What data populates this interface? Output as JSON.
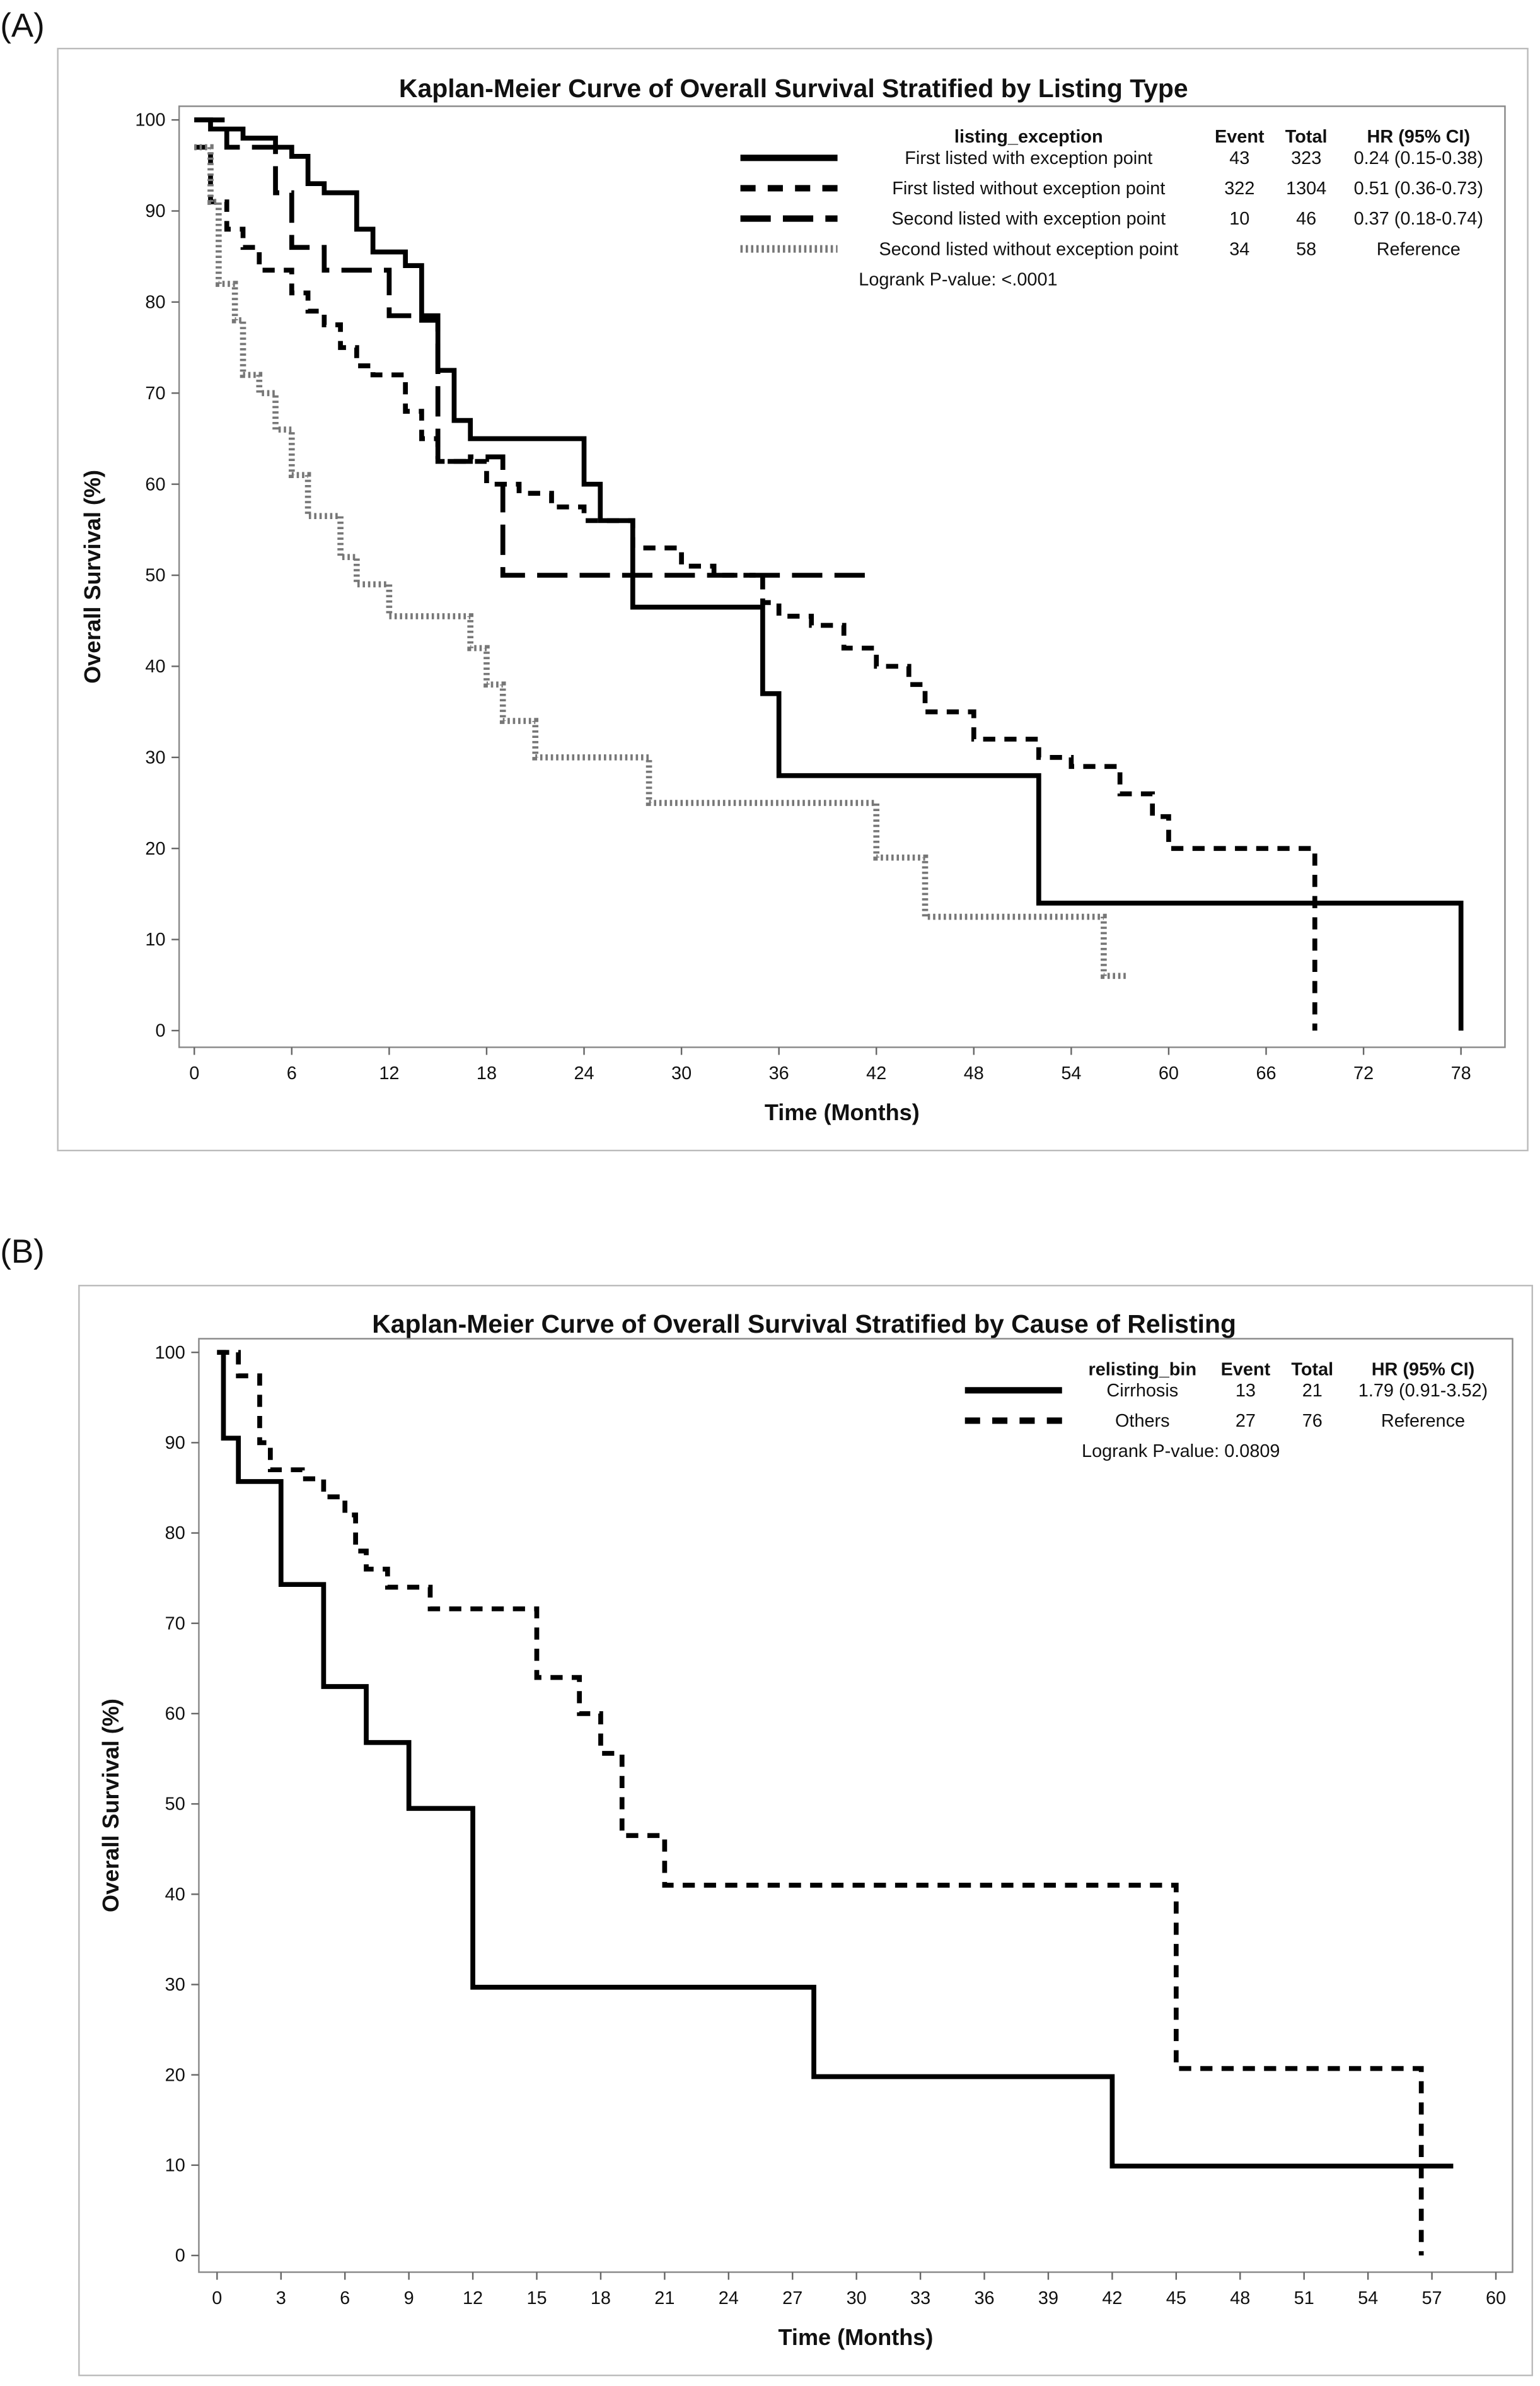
{
  "panels": [
    {
      "label": "(A)"
    },
    {
      "label": "(B)"
    }
  ],
  "chart_data": [
    {
      "type": "line",
      "subtype": "kaplan-meier step",
      "title": "Kaplan-Meier Curve of Overall Survival Stratified by Listing Type",
      "xlabel": "Time (Months)",
      "ylabel": "Overall Survival (%)",
      "xlim": [
        0,
        78
      ],
      "ylim": [
        0,
        100
      ],
      "xticks": [
        0,
        6,
        12,
        18,
        24,
        30,
        36,
        42,
        48,
        54,
        60,
        66,
        72,
        78
      ],
      "yticks": [
        0,
        10,
        20,
        30,
        40,
        50,
        60,
        70,
        80,
        90,
        100
      ],
      "grid": false,
      "legend_position": "top-right",
      "legend": {
        "header": [
          "listing_exception",
          "Event",
          "Total",
          "HR (95% CI)"
        ],
        "footer": "Logrank P-value: <.0001"
      },
      "series": [
        {
          "name": "First listed with exception point",
          "event": "43",
          "total": "323",
          "hr": "0.24 (0.15-0.38)",
          "style": "solid",
          "x": [
            0,
            1,
            3,
            5,
            6,
            7,
            8,
            10,
            11,
            13,
            14,
            15,
            16,
            17,
            24,
            25,
            27,
            35,
            36,
            52,
            78,
            78
          ],
          "y": [
            100,
            99,
            98,
            97,
            96,
            93,
            92,
            88,
            85.5,
            84,
            78,
            72.5,
            67,
            65,
            60,
            56,
            46.5,
            37,
            28,
            14,
            14,
            0
          ]
        },
        {
          "name": "First listed without exception point",
          "event": "322",
          "total": "1304",
          "hr": "0.51 (0.36-0.73)",
          "style": "short-dash",
          "x": [
            0,
            1,
            2,
            3,
            4,
            6,
            7,
            8,
            9,
            10,
            11,
            13,
            14,
            15,
            18,
            20,
            22,
            24,
            27,
            30,
            32,
            35,
            36,
            38,
            40,
            42,
            44,
            45,
            48,
            52,
            54,
            57,
            59,
            60,
            69,
            69
          ],
          "y": [
            97,
            91,
            88,
            86,
            83.5,
            81,
            79,
            77.5,
            75,
            73,
            72,
            68,
            65,
            62.5,
            60,
            59,
            57.5,
            56,
            53,
            51,
            50,
            47,
            45.5,
            44.5,
            42,
            40,
            38,
            35,
            32,
            30,
            29,
            26,
            23.5,
            20,
            20,
            0
          ]
        },
        {
          "name": "Second listed with exception point",
          "event": "10",
          "total": "46",
          "hr": "0.37 (0.18-0.74)",
          "style": "long-dash",
          "x": [
            0,
            2,
            5,
            6,
            8,
            12,
            15,
            17,
            19,
            41.5
          ],
          "y": [
            100,
            97,
            92,
            86,
            83.5,
            78.5,
            62.5,
            63,
            50,
            50
          ]
        },
        {
          "name": "Second listed without exception point",
          "event": "34",
          "total": "58",
          "hr": "Reference",
          "style": "dotted",
          "x": [
            0,
            1,
            1.5,
            2.5,
            3,
            4,
            5,
            6,
            7,
            9,
            10,
            12,
            17,
            18,
            19,
            21,
            28,
            42,
            45,
            56,
            57.5
          ],
          "y": [
            97,
            91,
            82,
            78,
            72,
            70,
            66,
            61,
            56.5,
            52,
            49,
            45.5,
            42,
            38,
            34,
            30,
            25,
            19,
            12.5,
            6,
            6
          ]
        }
      ]
    },
    {
      "type": "line",
      "subtype": "kaplan-meier step",
      "title": "Kaplan-Meier Curve of Overall Survival Stratified by Cause of Relisting",
      "xlabel": "Time (Months)",
      "ylabel": "Overall Survival (%)",
      "xlim": [
        0,
        60
      ],
      "ylim": [
        0,
        100
      ],
      "xticks": [
        0,
        3,
        6,
        9,
        12,
        15,
        18,
        21,
        24,
        27,
        30,
        33,
        36,
        39,
        42,
        45,
        48,
        51,
        54,
        57,
        60
      ],
      "yticks": [
        0,
        10,
        20,
        30,
        40,
        50,
        60,
        70,
        80,
        90,
        100
      ],
      "grid": false,
      "legend_position": "top-right",
      "legend": {
        "header": [
          "relisting_bin",
          "Event",
          "Total",
          "HR (95% CI)"
        ],
        "footer": "Logrank P-value: 0.0809"
      },
      "series": [
        {
          "name": "Cirrhosis",
          "event": "13",
          "total": "21",
          "hr": "1.79 (0.91-3.52)",
          "style": "solid",
          "x": [
            0,
            0.3,
            1,
            3,
            5,
            7,
            9,
            12,
            28,
            42,
            58
          ],
          "y": [
            100,
            90.5,
            85.7,
            74.3,
            63,
            56.8,
            49.5,
            29.7,
            19.8,
            9.9,
            9.9
          ]
        },
        {
          "name": "Others",
          "event": "27",
          "total": "76",
          "hr": "Reference",
          "style": "short-dash",
          "x": [
            0,
            1,
            2,
            2.5,
            4,
            5,
            6,
            6.5,
            7,
            8,
            10,
            15,
            17,
            18,
            19,
            21,
            45,
            56.5,
            56.5
          ],
          "y": [
            100,
            97.4,
            90,
            87,
            86,
            84,
            82,
            78,
            76,
            74,
            71.6,
            64,
            60,
            55.6,
            46.5,
            41,
            20.7,
            20.7,
            0
          ]
        }
      ]
    }
  ]
}
